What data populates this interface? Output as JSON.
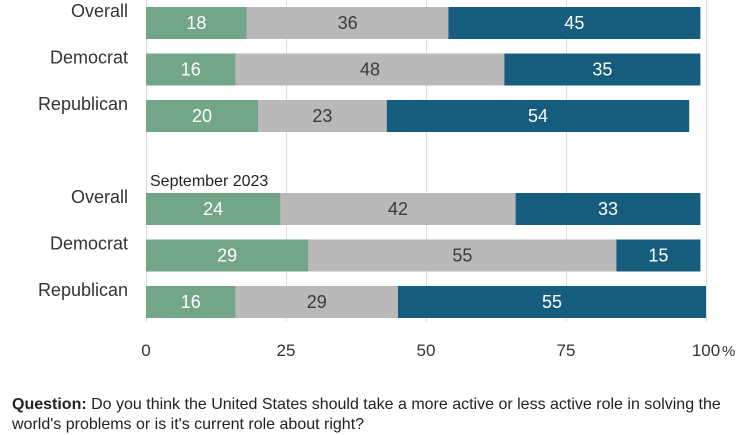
{
  "chart_data": {
    "type": "bar",
    "orientation": "horizontal",
    "stacked": true,
    "x_axis": {
      "min": 0,
      "max": 100,
      "ticks": [
        0,
        25,
        50,
        75,
        100
      ],
      "tick_labels": [
        "0",
        "25",
        "50",
        "75",
        "100"
      ],
      "unit": "%"
    },
    "grid": true,
    "segment_colors": [
      "#73a588",
      "#b9b9b9",
      "#165c7c"
    ],
    "groups": [
      {
        "label": "",
        "rows": [
          {
            "category": "Overall",
            "values": [
              18,
              36,
              45
            ]
          },
          {
            "category": "Democrat",
            "values": [
              16,
              48,
              35
            ]
          },
          {
            "category": "Republican",
            "values": [
              20,
              23,
              54
            ]
          }
        ]
      },
      {
        "label": "September 2023",
        "rows": [
          {
            "category": "Overall",
            "values": [
              24,
              42,
              33
            ]
          },
          {
            "category": "Democrat",
            "values": [
              29,
              55,
              15
            ]
          },
          {
            "category": "Republican",
            "values": [
              16,
              29,
              55
            ]
          }
        ]
      }
    ]
  },
  "footnote": {
    "label": "Question:",
    "text": " Do you think the United States should take a more active or less active role in solving the world's problems or is it's current role about right?"
  }
}
